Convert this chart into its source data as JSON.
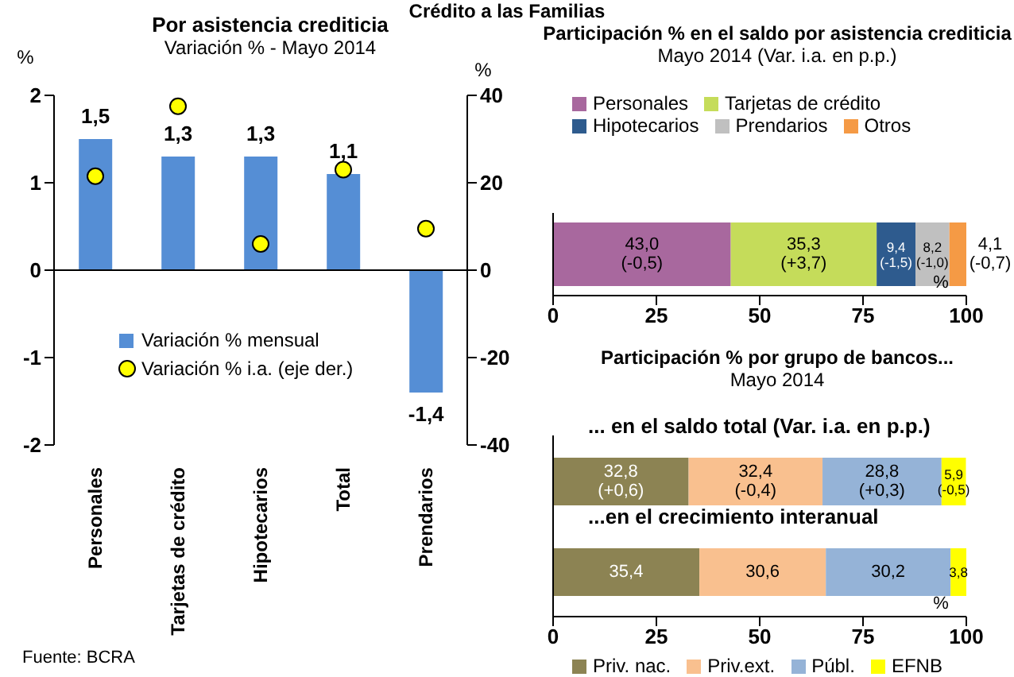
{
  "chart_data": [
    {
      "type": "bar",
      "title": "Por asistencia crediticia",
      "subtitle": "Variación % - Mayo 2014",
      "ylabel": "%",
      "y2label": "%",
      "categories": [
        "Personales",
        "Tarjetas de crédito",
        "Hipotecarios",
        "Total",
        "Prendarios"
      ],
      "series": [
        {
          "name": "Variación % mensual",
          "color": "#558ed5",
          "values": [
            1.5,
            1.3,
            1.3,
            1.1,
            -1.4
          ],
          "value_labels": [
            "1,5",
            "1,3",
            "1,3",
            "1,1",
            "-1,4"
          ]
        },
        {
          "name": "Variación % i.a. (eje der.)",
          "type": "scatter",
          "axis": "y2",
          "color": "#ffff00",
          "values": [
            21.5,
            37.5,
            6,
            23,
            9.5
          ]
        }
      ],
      "ylim": [
        -2,
        2
      ],
      "yticks": [
        -2,
        -1,
        0,
        1,
        2
      ],
      "y2lim": [
        -40,
        40
      ],
      "y2ticks": [
        -40,
        -20,
        0,
        20,
        40
      ],
      "marker": "circle",
      "legend": "left",
      "grid": false,
      "ref_lines": [
        {
          "axis": "y",
          "value": 0,
          "color": "#000000"
        }
      ],
      "annotations": [
        "Crédito a las Familias",
        "Fuente: BCRA"
      ]
    },
    {
      "type": "bar",
      "orientation": "horizontal",
      "stacked": true,
      "title": "Participación % en el saldo por asistencia crediticia",
      "subtitle": "Mayo 2014 (Var. i.a. en p.p.)",
      "xlabel": "%",
      "categories": [
        null
      ],
      "series": [
        {
          "name": "Personales",
          "color": "#a8689e",
          "values": [
            43.0
          ],
          "value_labels": [
            "43,0\n(-0,5)"
          ]
        },
        {
          "name": "Tarjetas de crédito",
          "color": "#c5dc5a",
          "values": [
            35.3
          ],
          "value_labels": [
            "35,3\n(+3,7)"
          ]
        },
        {
          "name": "Hipotecarios",
          "color": "#2e5b8e",
          "values": [
            9.4
          ],
          "value_labels": [
            "9,4\n(-1,5)"
          ]
        },
        {
          "name": "Prendarios",
          "color": "#c0c0c0",
          "values": [
            8.2
          ],
          "value_labels": [
            "8,2\n(-1,0)"
          ]
        },
        {
          "name": "Otros",
          "color": "#f59a45",
          "values": [
            4.1
          ],
          "value_labels": [
            "4,1\n(-0,7)"
          ]
        }
      ],
      "xlim": [
        0,
        100
      ],
      "xticks": [
        0,
        25,
        50,
        75,
        100
      ],
      "legend": "top",
      "grid": false
    },
    {
      "type": "bar",
      "orientation": "horizontal",
      "stacked": true,
      "title": "Participación % por grupo de bancos...",
      "subtitle": "Mayo 2014",
      "xlabel": "%",
      "categories": [
        "... en el saldo total (Var. i.a. en p.p.)",
        "...en el crecimiento interanual"
      ],
      "series": [
        {
          "name": "Priv. nac.",
          "color": "#8c8353",
          "values": [
            32.8,
            35.4
          ],
          "value_labels": [
            "32,8\n(+0,6)",
            "35,4"
          ]
        },
        {
          "name": "Priv.ext.",
          "color": "#f9c08f",
          "values": [
            32.4,
            30.6
          ],
          "value_labels": [
            "32,4\n(-0,4)",
            "30,6"
          ]
        },
        {
          "name": "Públ.",
          "color": "#95b3d7",
          "values": [
            28.8,
            30.2
          ],
          "value_labels": [
            "28,8\n(+0,3)",
            "30,2"
          ]
        },
        {
          "name": "EFNB",
          "color": "#ffff00",
          "values": [
            5.9,
            3.8
          ],
          "value_labels": [
            "5,9\n(-0,5)",
            "3,8"
          ]
        }
      ],
      "xlim": [
        0,
        100
      ],
      "xticks": [
        0,
        25,
        50,
        75,
        100
      ],
      "legend": "bottom",
      "grid": false
    }
  ]
}
